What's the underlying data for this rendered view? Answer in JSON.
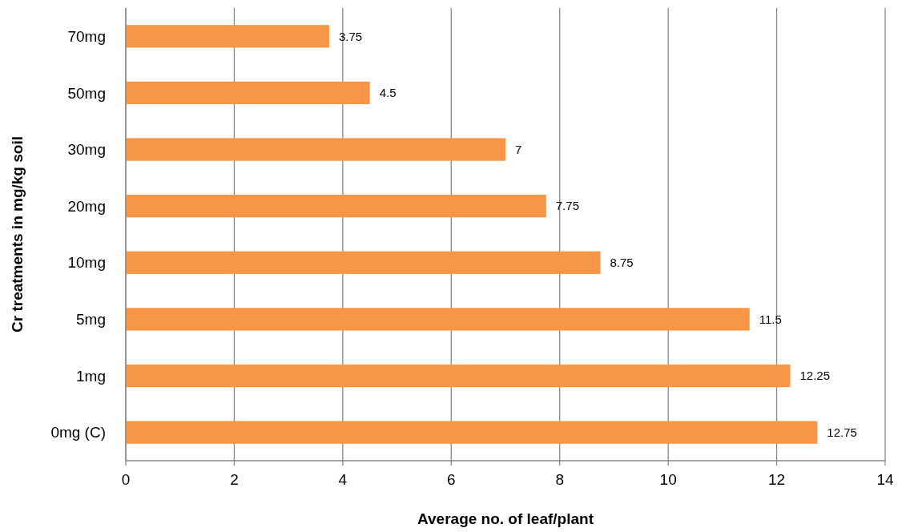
{
  "chart_data": {
    "type": "bar",
    "orientation": "horizontal",
    "xlabel": "Average no. of leaf/plant",
    "ylabel": "Cr treatments in mg/kg soil",
    "categories": [
      "70mg",
      "50mg",
      "30mg",
      "20mg",
      "10mg",
      "5mg",
      "1mg",
      "0mg (C)"
    ],
    "values": [
      3.75,
      4.5,
      7,
      7.75,
      8.75,
      11.5,
      12.25,
      12.75
    ],
    "color": "#f79646",
    "xlim": [
      0,
      14
    ],
    "xticks": [
      0,
      2,
      4,
      6,
      8,
      10,
      12,
      14
    ],
    "grid": "x",
    "data_labels": true
  }
}
